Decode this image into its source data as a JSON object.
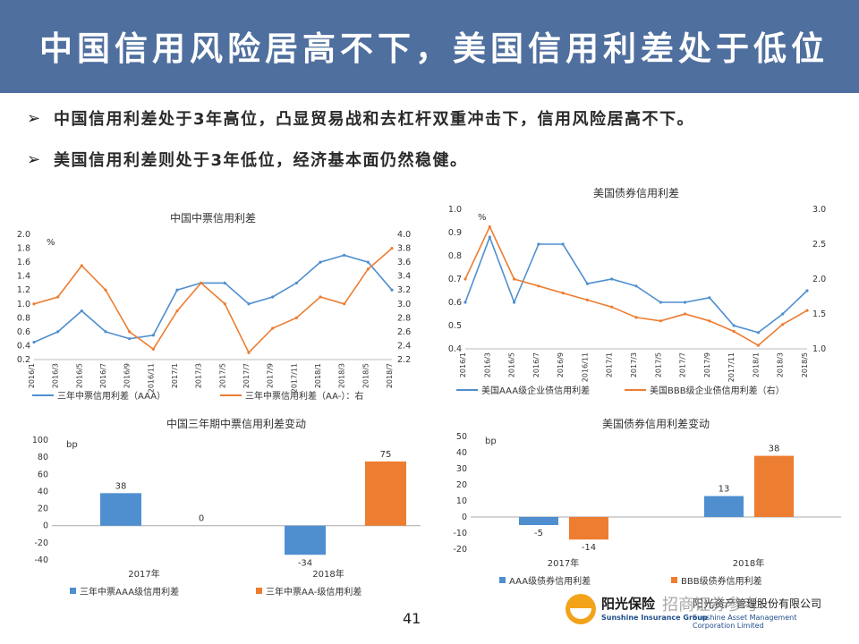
{
  "slide": {
    "title": "中国信用风险居高不下，美国信用利差处于低位",
    "bullets": [
      "中国信用利差处于3年高位，凸显贸易战和去杠杆双重冲击下，信用风险居高不下。",
      "美国信用利差则处于3年低位，经济基本面仍然稳健。"
    ],
    "bullet_icon": "arrow-bullet-icon",
    "page_number": "41",
    "logo": {
      "cn": "阳光保险",
      "en": "Sunshine Insurance Group",
      "cn2": "阳光资产管理股份有限公司",
      "en2": "Sunshine Asset Management Corporation Limited"
    },
    "watermark": "招商证券参考"
  },
  "colors": {
    "banner": "#4f6f9e",
    "blue": "#4f8fd0",
    "orange": "#ed7d31"
  },
  "chart_data": [
    {
      "type": "line",
      "title": "中国中票信用利差",
      "unit_label": "%",
      "x": [
        "2016/1",
        "2016/3",
        "2016/5",
        "2016/7",
        "2016/9",
        "2016/11",
        "2017/1",
        "2017/3",
        "2017/5",
        "2017/7",
        "2017/9",
        "2017/11",
        "2018/1",
        "2018/3",
        "2018/5",
        "2018/7"
      ],
      "ylim": [
        0.2,
        2.0
      ],
      "yticks": [
        "0.2",
        "0.4",
        "0.6",
        "0.8",
        "1.0",
        "1.2",
        "1.4",
        "1.6",
        "1.8",
        "2.0"
      ],
      "y2lim": [
        2.2,
        4.0
      ],
      "y2ticks": [
        "2.2",
        "2.4",
        "2.6",
        "2.8",
        "3.0",
        "3.2",
        "3.4",
        "3.6",
        "3.8",
        "4.0"
      ],
      "legend": [
        "三年中票信用利差（AAA）",
        "三年中票信用利差（AA-）：右"
      ],
      "series": [
        {
          "name": "三年中票信用利差（AAA）",
          "axis": "left",
          "color": "#4f8fd0",
          "values": [
            0.45,
            0.6,
            0.9,
            0.6,
            0.5,
            0.55,
            1.2,
            1.3,
            1.3,
            1.0,
            1.1,
            1.3,
            1.6,
            1.7,
            1.6,
            1.2
          ]
        },
        {
          "name": "三年中票信用利差（AA-）：右",
          "axis": "right",
          "color": "#ed7d31",
          "values": [
            3.0,
            3.1,
            3.55,
            3.2,
            2.6,
            2.35,
            2.9,
            3.3,
            3.0,
            2.3,
            2.65,
            2.8,
            3.1,
            3.0,
            3.5,
            3.8
          ]
        }
      ]
    },
    {
      "type": "line",
      "title": "美国债券信用利差",
      "unit_label": "%",
      "x": [
        "2016/1",
        "2016/3",
        "2016/5",
        "2016/7",
        "2016/9",
        "2016/11",
        "2017/1",
        "2017/3",
        "2017/5",
        "2017/7",
        "2017/9",
        "2017/11",
        "2018/1",
        "2018/3",
        "2018/5"
      ],
      "ylim": [
        0.4,
        1.0
      ],
      "yticks": [
        "0.4",
        "0.5",
        "0.6",
        "0.7",
        "0.8",
        "0.9",
        "1.0"
      ],
      "y2lim": [
        1.0,
        3.0
      ],
      "y2ticks": [
        "1.0",
        "1.5",
        "2.0",
        "2.5",
        "3.0"
      ],
      "legend": [
        "美国AAA级企业债信用利差",
        "美国BBB级企业债信用利差（右）"
      ],
      "series": [
        {
          "name": "美国AAA级企业债信用利差",
          "axis": "left",
          "color": "#4f8fd0",
          "values": [
            0.6,
            0.88,
            0.6,
            0.85,
            0.85,
            0.68,
            0.7,
            0.67,
            0.6,
            0.6,
            0.62,
            0.5,
            0.47,
            0.55,
            0.65
          ]
        },
        {
          "name": "美国BBB级企业债信用利差（右）",
          "axis": "right",
          "color": "#ed7d31",
          "values": [
            2.0,
            2.75,
            2.0,
            1.9,
            1.8,
            1.7,
            1.6,
            1.45,
            1.4,
            1.5,
            1.4,
            1.25,
            1.05,
            1.35,
            1.55
          ]
        }
      ]
    },
    {
      "type": "bar",
      "title": "中国三年期中票信用利差变动",
      "unit_label": "bp",
      "categories": [
        "2017年",
        "2018年"
      ],
      "ylim": [
        -40,
        100
      ],
      "yticks": [
        "-40",
        "-20",
        "0",
        "20",
        "40",
        "60",
        "80",
        "100"
      ],
      "series": [
        {
          "name": "三年中票AAA级信用利差",
          "color": "#4f8fd0",
          "values": [
            38,
            -34
          ],
          "labels": [
            "38",
            "-34"
          ]
        },
        {
          "name": "三年中票AA-级信用利差",
          "color": "#ed7d31",
          "values": [
            0,
            75
          ],
          "labels": [
            "0",
            "75"
          ]
        }
      ]
    },
    {
      "type": "bar",
      "title": "美国债券信用利差变动",
      "unit_label": "bp",
      "categories": [
        "2017年",
        "2018年"
      ],
      "ylim": [
        -20,
        50
      ],
      "yticks": [
        "-20",
        "-10",
        "0",
        "10",
        "20",
        "30",
        "40",
        "50"
      ],
      "series": [
        {
          "name": "AAA级债券信用利差",
          "color": "#4f8fd0",
          "values": [
            -5,
            13
          ],
          "labels": [
            "-5",
            "13"
          ]
        },
        {
          "name": "BBB级债券信用利差",
          "color": "#ed7d31",
          "values": [
            -14,
            38
          ],
          "labels": [
            "-14",
            "38"
          ]
        }
      ]
    }
  ]
}
